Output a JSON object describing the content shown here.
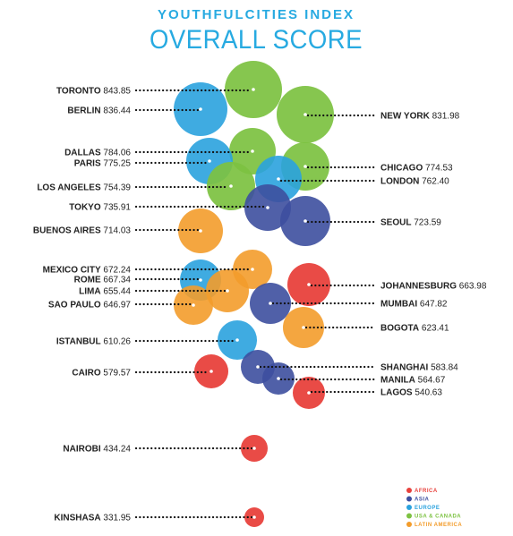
{
  "title": "YOUTHFULCITIES INDEX",
  "subtitle": "OVERALL SCORE",
  "colors": {
    "title": "#27aae1",
    "Africa": "#e8413c",
    "Asia": "#3d4f9f",
    "Europe": "#2aa2de",
    "USA & Canada": "#7dc242",
    "Latin America": "#f39c2b",
    "label": "#222222",
    "dot": "#111111"
  },
  "legend": [
    {
      "key": "Africa",
      "label": "AFRICA"
    },
    {
      "key": "Asia",
      "label": "ASIA"
    },
    {
      "key": "Europe",
      "label": "EUROPE"
    },
    {
      "key": "USA & Canada",
      "label": "USA & CANADA"
    },
    {
      "key": "Latin America",
      "label": "LATIN AMERICA"
    }
  ],
  "chart_data": {
    "type": "scatter",
    "title": "OVERALL SCORE",
    "value_field": "score",
    "series": [
      {
        "name": "AFRICA",
        "key": "Africa"
      },
      {
        "name": "ASIA",
        "key": "Asia"
      },
      {
        "name": "EUROPE",
        "key": "Europe"
      },
      {
        "name": "USA & CANADA",
        "key": "USA & Canada"
      },
      {
        "name": "LATIN AMERICA",
        "key": "Latin America"
      }
    ],
    "points": [
      {
        "city": "TORONTO",
        "score": "843.85",
        "region": "USA & Canada",
        "side": "left"
      },
      {
        "city": "BERLIN",
        "score": "836.44",
        "region": "Europe",
        "side": "left"
      },
      {
        "city": "NEW YORK",
        "score": "831.98",
        "region": "USA & Canada",
        "side": "right"
      },
      {
        "city": "DALLAS",
        "score": "784.06",
        "region": "USA & Canada",
        "side": "left"
      },
      {
        "city": "PARIS",
        "score": "775.25",
        "region": "Europe",
        "side": "left"
      },
      {
        "city": "CHICAGO",
        "score": "774.53",
        "region": "USA & Canada",
        "side": "right"
      },
      {
        "city": "LONDON",
        "score": "762.40",
        "region": "Europe",
        "side": "right"
      },
      {
        "city": "LOS ANGELES",
        "score": "754.39",
        "region": "USA & Canada",
        "side": "left"
      },
      {
        "city": "TOKYO",
        "score": "735.91",
        "region": "Asia",
        "side": "left"
      },
      {
        "city": "SEOUL",
        "score": "723.59",
        "region": "Asia",
        "side": "right"
      },
      {
        "city": "BUENOS AIRES",
        "score": "714.03",
        "region": "Latin America",
        "side": "left"
      },
      {
        "city": "MEXICO CITY",
        "score": "672.24",
        "region": "Latin America",
        "side": "left"
      },
      {
        "city": "ROME",
        "score": "667.34",
        "region": "Europe",
        "side": "left"
      },
      {
        "city": "JOHANNESBURG",
        "score": "663.98",
        "region": "Africa",
        "side": "right"
      },
      {
        "city": "LIMA",
        "score": "655.44",
        "region": "Latin America",
        "side": "left"
      },
      {
        "city": "MUMBAI",
        "score": "647.82",
        "region": "Asia",
        "side": "right"
      },
      {
        "city": "SAO PAULO",
        "score": "646.97",
        "region": "Latin America",
        "side": "left"
      },
      {
        "city": "BOGOTA",
        "score": "623.41",
        "region": "Latin America",
        "side": "right"
      },
      {
        "city": "ISTANBUL",
        "score": "610.26",
        "region": "Europe",
        "side": "left"
      },
      {
        "city": "SHANGHAI",
        "score": "583.84",
        "region": "Asia",
        "side": "right"
      },
      {
        "city": "CAIRO",
        "score": "579.57",
        "region": "Africa",
        "side": "left"
      },
      {
        "city": "MANILA",
        "score": "564.67",
        "region": "Asia",
        "side": "right"
      },
      {
        "city": "LAGOS",
        "score": "540.63",
        "region": "Africa",
        "side": "right"
      },
      {
        "city": "NAIROBI",
        "score": "434.24",
        "region": "Africa",
        "side": "left"
      },
      {
        "city": "KINSHASA",
        "score": "331.95",
        "region": "Africa",
        "side": "left"
      }
    ]
  }
}
